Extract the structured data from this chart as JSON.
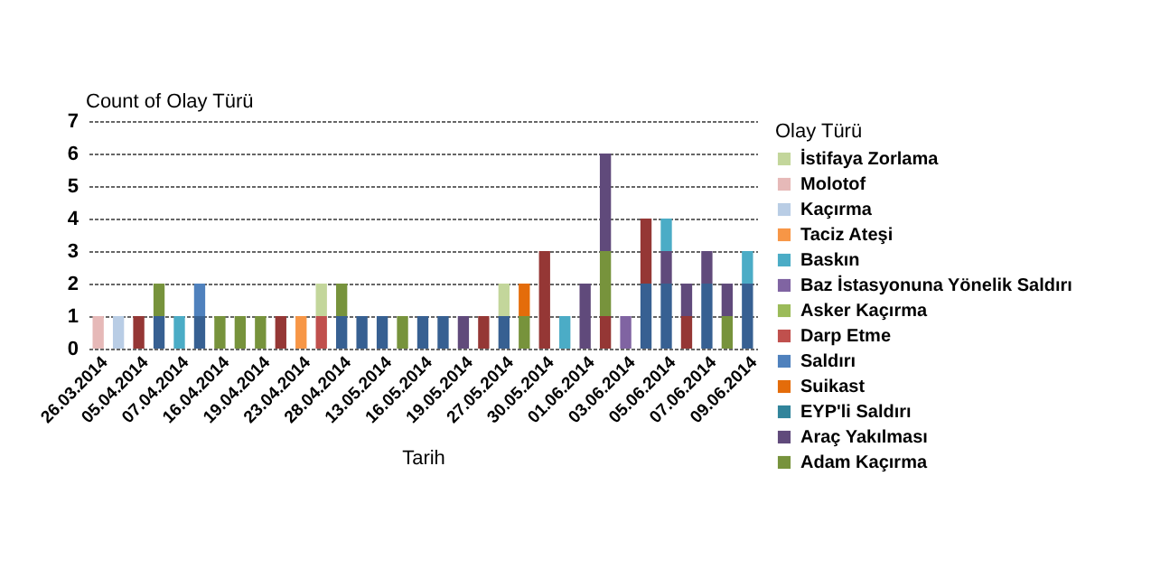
{
  "chart_data": {
    "type": "bar",
    "stacked": true,
    "ylabel": "Count of Olay Türü",
    "xlabel": "Tarih",
    "legend_title": "Olay Türü",
    "legend": "right",
    "grid": "y",
    "categories": [
      "26.03.2014",
      null,
      "05.04.2014",
      null,
      "07.04.2014",
      null,
      "16.04.2014",
      null,
      "19.04.2014",
      null,
      "23.04.2014",
      null,
      "28.04.2014",
      null,
      "13.05.2014",
      null,
      "16.05.2014",
      null,
      "19.05.2014",
      null,
      "27.05.2014",
      null,
      "30.05.2014",
      null,
      "01.06.2014",
      null,
      "03.06.2014",
      null,
      "05.06.2014",
      null,
      "07.06.2014",
      null,
      "09.06.2014"
    ],
    "ylim": [
      0,
      7
    ],
    "yticks": [
      0,
      1,
      2,
      3,
      4,
      5,
      6,
      7
    ],
    "series": [
      {
        "color": "#376092",
        "values": [
          null,
          null,
          null,
          1,
          null,
          1,
          null,
          null,
          null,
          null,
          null,
          null,
          1,
          1,
          1,
          null,
          1,
          1,
          null,
          null,
          1,
          null,
          null,
          null,
          null,
          null,
          null,
          2,
          2,
          null,
          2,
          null,
          2
        ]
      },
      {
        "color": "#953735",
        "values": [
          null,
          null,
          1,
          null,
          null,
          null,
          null,
          null,
          null,
          1,
          null,
          null,
          null,
          null,
          null,
          null,
          null,
          null,
          null,
          1,
          null,
          null,
          3,
          null,
          null,
          1,
          null,
          2,
          null,
          1,
          null,
          null,
          null
        ]
      },
      {
        "name": "Adam Kaçırma",
        "color": "#77933c",
        "values": [
          null,
          null,
          null,
          1,
          null,
          null,
          1,
          1,
          1,
          null,
          null,
          null,
          1,
          null,
          null,
          1,
          null,
          null,
          null,
          null,
          null,
          1,
          null,
          null,
          null,
          2,
          null,
          null,
          null,
          null,
          null,
          1,
          null
        ]
      },
      {
        "name": "Araç Yakılması",
        "color": "#604a7b",
        "values": [
          null,
          null,
          null,
          null,
          null,
          null,
          null,
          null,
          null,
          null,
          null,
          null,
          null,
          null,
          null,
          null,
          null,
          null,
          1,
          null,
          null,
          null,
          null,
          null,
          2,
          3,
          null,
          null,
          1,
          1,
          1,
          1,
          null
        ]
      },
      {
        "name": "EYP'li Saldırı",
        "color": "#31849b",
        "values": [
          null,
          null,
          null,
          null,
          null,
          null,
          null,
          null,
          null,
          null,
          null,
          null,
          null,
          null,
          null,
          null,
          null,
          null,
          null,
          null,
          null,
          null,
          null,
          null,
          null,
          null,
          null,
          null,
          null,
          null,
          null,
          null,
          null
        ]
      },
      {
        "name": "Suikast",
        "color": "#e46c0a",
        "values": [
          null,
          null,
          null,
          null,
          null,
          null,
          null,
          null,
          null,
          null,
          null,
          null,
          null,
          null,
          null,
          null,
          null,
          null,
          null,
          null,
          null,
          1,
          null,
          null,
          null,
          null,
          null,
          null,
          null,
          null,
          null,
          null,
          null
        ]
      },
      {
        "name": "Saldırı",
        "color": "#4f81bd",
        "values": [
          null,
          null,
          null,
          null,
          null,
          1,
          null,
          null,
          null,
          null,
          null,
          null,
          null,
          null,
          null,
          null,
          null,
          null,
          null,
          null,
          null,
          null,
          null,
          null,
          null,
          null,
          null,
          null,
          null,
          null,
          null,
          null,
          null
        ]
      },
      {
        "name": "Darp Etme",
        "color": "#c0504d",
        "values": [
          null,
          null,
          null,
          null,
          null,
          null,
          null,
          null,
          null,
          null,
          null,
          1,
          null,
          null,
          null,
          null,
          null,
          null,
          null,
          null,
          null,
          null,
          null,
          null,
          null,
          null,
          null,
          null,
          null,
          null,
          null,
          null,
          null
        ]
      },
      {
        "name": "Asker Kaçırma",
        "color": "#9bbb59",
        "values": [
          null,
          null,
          null,
          null,
          null,
          null,
          null,
          null,
          null,
          null,
          null,
          null,
          null,
          null,
          null,
          null,
          null,
          null,
          null,
          null,
          null,
          null,
          null,
          null,
          null,
          null,
          null,
          null,
          null,
          null,
          null,
          null,
          null
        ]
      },
      {
        "name": "Baz İstasyonuna Yönelik Saldırı",
        "color": "#8064a2",
        "values": [
          null,
          null,
          null,
          null,
          null,
          null,
          null,
          null,
          null,
          null,
          null,
          null,
          null,
          null,
          null,
          null,
          null,
          null,
          null,
          null,
          null,
          null,
          null,
          null,
          null,
          null,
          1,
          null,
          null,
          null,
          null,
          null,
          null
        ]
      },
      {
        "name": "Baskın",
        "color": "#4bacc6",
        "values": [
          null,
          null,
          null,
          null,
          1,
          null,
          null,
          null,
          null,
          null,
          null,
          null,
          null,
          null,
          null,
          null,
          null,
          null,
          null,
          null,
          null,
          null,
          null,
          1,
          null,
          null,
          null,
          null,
          1,
          null,
          null,
          null,
          1
        ]
      },
      {
        "name": "Taciz Ateşi",
        "color": "#f79646",
        "values": [
          null,
          null,
          null,
          null,
          null,
          null,
          null,
          null,
          null,
          null,
          1,
          null,
          null,
          null,
          null,
          null,
          null,
          null,
          null,
          null,
          null,
          null,
          null,
          null,
          null,
          null,
          null,
          null,
          null,
          null,
          null,
          null,
          null
        ]
      },
      {
        "name": "Kaçırma",
        "color": "#b9cde5",
        "values": [
          null,
          1,
          null,
          null,
          null,
          null,
          null,
          null,
          null,
          null,
          null,
          null,
          null,
          null,
          null,
          null,
          null,
          null,
          null,
          null,
          null,
          null,
          null,
          null,
          null,
          null,
          null,
          null,
          null,
          null,
          null,
          null,
          null
        ]
      },
      {
        "name": "Molotof",
        "color": "#e6b9b8",
        "values": [
          1,
          null,
          null,
          null,
          null,
          null,
          null,
          null,
          null,
          null,
          null,
          null,
          null,
          null,
          null,
          null,
          null,
          null,
          null,
          null,
          null,
          null,
          null,
          null,
          null,
          null,
          null,
          null,
          null,
          null,
          null,
          null,
          null
        ]
      },
      {
        "name": "İstifaya Zorlama",
        "color": "#c3d69b",
        "values": [
          null,
          null,
          null,
          null,
          null,
          null,
          null,
          null,
          null,
          null,
          null,
          1,
          null,
          null,
          null,
          null,
          null,
          null,
          null,
          null,
          1,
          null,
          null,
          null,
          null,
          null,
          null,
          null,
          null,
          null,
          null,
          null,
          null
        ]
      }
    ]
  }
}
